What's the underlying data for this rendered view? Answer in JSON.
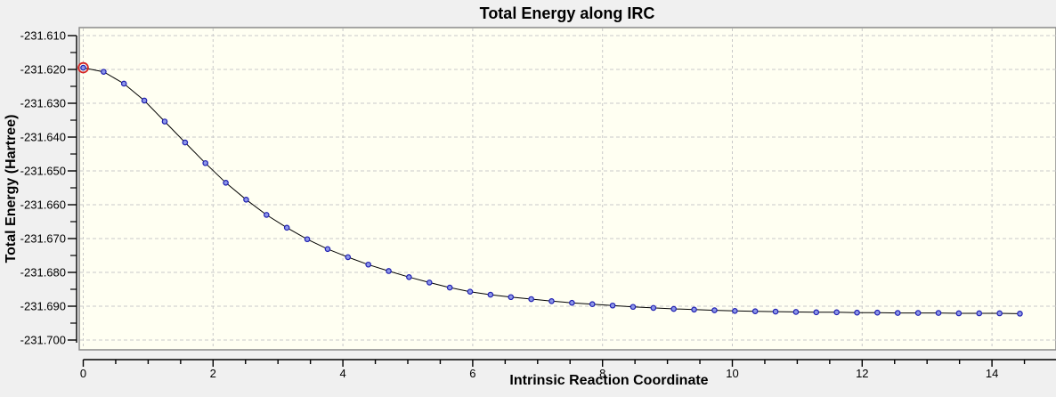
{
  "window": {
    "background_color": "#f0f0f0"
  },
  "chart_data": {
    "type": "line",
    "title": "Total Energy along IRC",
    "xlabel": "Intrinsic Reaction Coordinate",
    "ylabel": "Total Energy (Hartree)",
    "x_ticks": [
      0,
      2,
      4,
      6,
      8,
      10,
      12,
      14
    ],
    "x_minor_tick_step": 0.5,
    "xlim": [
      0,
      15
    ],
    "y_tick_labels": [
      "-231.610",
      "-231.620",
      "-231.630",
      "-231.640",
      "-231.650",
      "-231.660",
      "-231.670",
      "-231.680",
      "-231.690",
      "-231.700"
    ],
    "y_tick_values": [
      -231.61,
      -231.62,
      -231.63,
      -231.64,
      -231.65,
      -231.66,
      -231.67,
      -231.68,
      -231.69,
      -231.7
    ],
    "y_minor_tick_step": 0.005,
    "ylim": [
      -231.704,
      -231.608
    ],
    "grid": "dashed, both axes, at major ticks",
    "legend": "none",
    "plot_background": "#fffff2",
    "grid_color": "#c9c9c9",
    "border_color": "#8a8a8a",
    "axis_color": "#000000",
    "line_color": "#000000",
    "marker_fill": "#8d97e8",
    "marker_stroke": "#2121b2",
    "highlight_ring_color": "#d42525",
    "selected_point_index": 0,
    "series": [
      {
        "name": "Total Energy",
        "x": [
          0.0,
          0.314,
          0.627,
          0.941,
          1.255,
          1.569,
          1.882,
          2.196,
          2.51,
          2.823,
          3.137,
          3.451,
          3.765,
          4.078,
          4.392,
          4.706,
          5.019,
          5.333,
          5.647,
          5.96,
          6.274,
          6.588,
          6.902,
          7.215,
          7.529,
          7.843,
          8.156,
          8.47,
          8.784,
          9.097,
          9.411,
          9.725,
          10.039,
          10.352,
          10.666,
          10.98,
          11.293,
          11.607,
          11.921,
          12.234,
          12.548,
          12.862,
          13.176,
          13.489,
          13.803,
          14.117,
          14.43
        ],
        "y": [
          -231.6195,
          -231.6207,
          -231.6242,
          -231.6292,
          -231.6354,
          -231.6416,
          -231.6477,
          -231.6535,
          -231.6585,
          -231.663,
          -231.6668,
          -231.6702,
          -231.6731,
          -231.6755,
          -231.6777,
          -231.6796,
          -231.6814,
          -231.683,
          -231.6845,
          -231.6857,
          -231.6866,
          -231.6873,
          -231.6879,
          -231.6885,
          -231.689,
          -231.6894,
          -231.6898,
          -231.6902,
          -231.6905,
          -231.6908,
          -231.691,
          -231.6912,
          -231.6914,
          -231.6915,
          -231.6916,
          -231.6917,
          -231.6918,
          -231.6918,
          -231.6919,
          -231.6919,
          -231.692,
          -231.692,
          -231.692,
          -231.6921,
          -231.6921,
          -231.6921,
          -231.6922
        ]
      }
    ]
  }
}
